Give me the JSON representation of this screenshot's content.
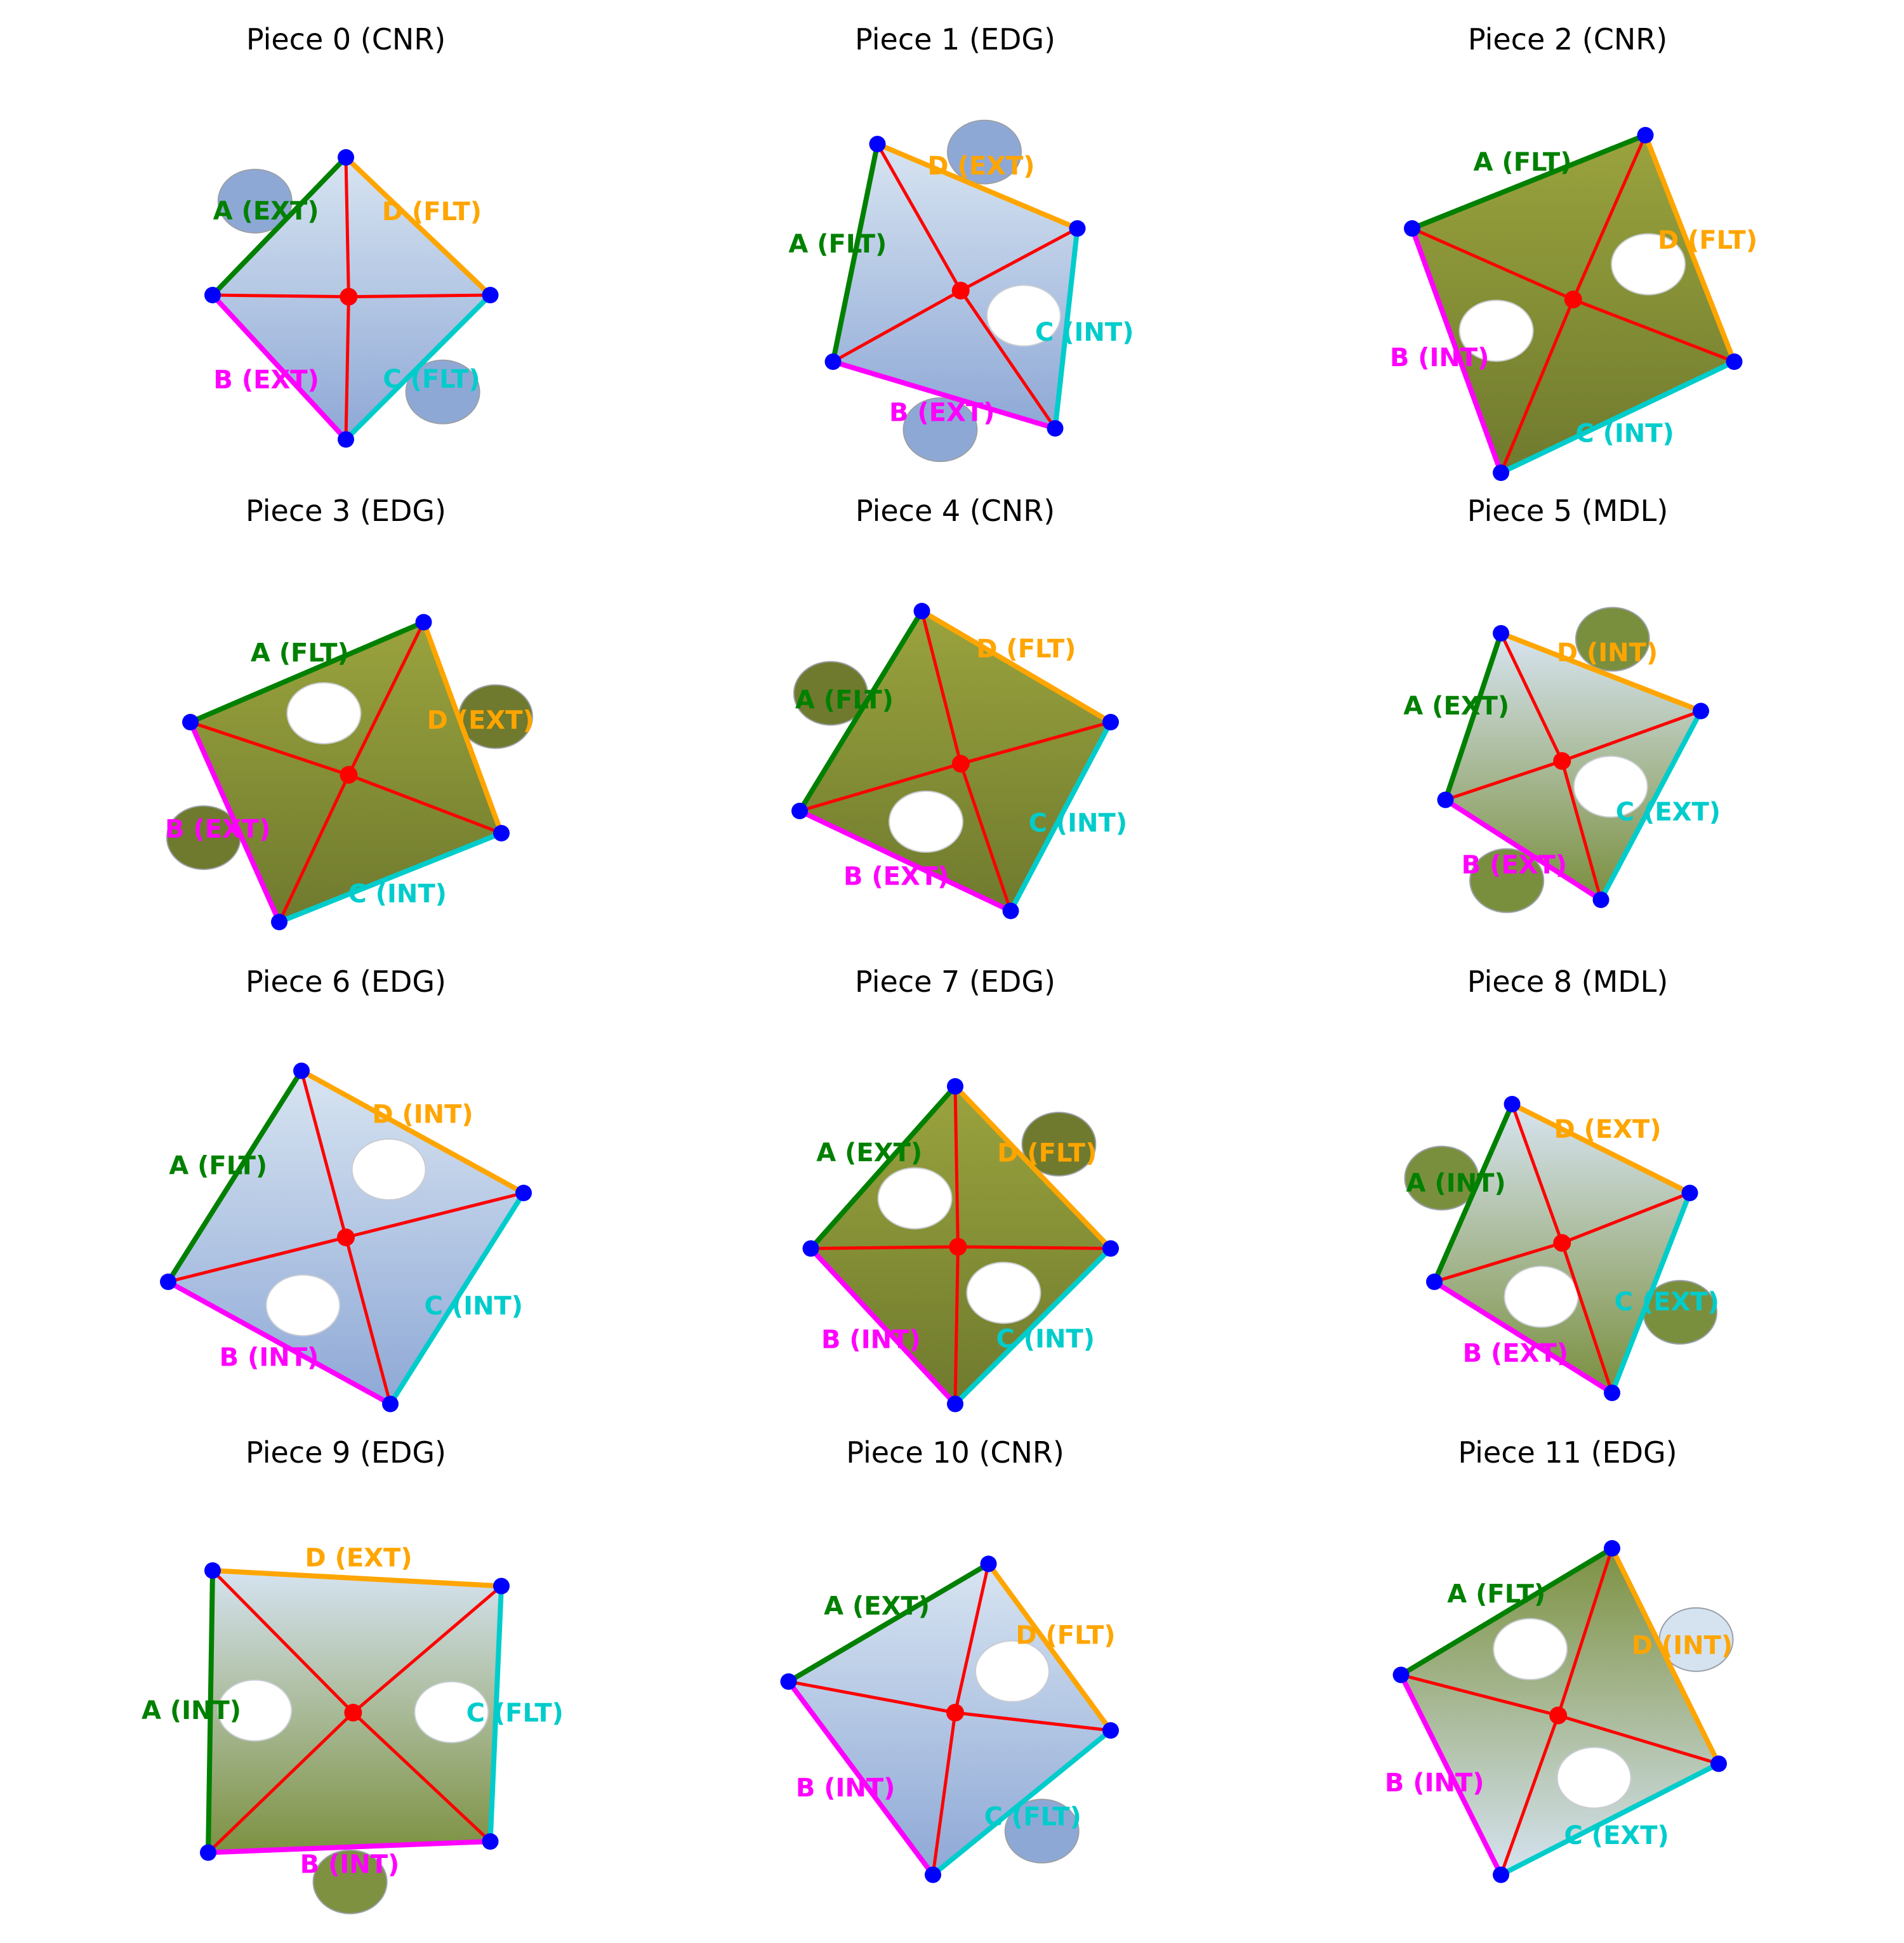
{
  "figure": {
    "pieces": [
      {
        "title": "Piece 0 (CNR)",
        "image": "sky",
        "tabs": [
          "ext",
          "ext"
        ],
        "holes": [],
        "corners": [
          [
            0,
            -62
          ],
          [
            -60,
            0
          ],
          [
            0,
            65
          ],
          [
            65,
            0
          ]
        ],
        "edges": [
          {
            "label": "A (EXT)",
            "color": "#008000"
          },
          {
            "label": "B (EXT)",
            "color": "#ff00ff"
          },
          {
            "label": "C (FLT)",
            "color": "#00cccc"
          },
          {
            "label": "D (FLT)",
            "color": "#ffa500"
          }
        ]
      },
      {
        "title": "Piece 1 (EDG)",
        "image": "sky",
        "tabs": [
          "ext",
          "ext"
        ],
        "holes": [
          "int"
        ],
        "corners": [
          [
            -35,
            -68
          ],
          [
            -55,
            30
          ],
          [
            45,
            60
          ],
          [
            55,
            -30
          ]
        ],
        "edges": [
          {
            "label": "A (FLT)",
            "color": "#008000"
          },
          {
            "label": "B (EXT)",
            "color": "#ff00ff"
          },
          {
            "label": "C (INT)",
            "color": "#00cccc"
          },
          {
            "label": "D (EXT)",
            "color": "#ffa500"
          }
        ]
      },
      {
        "title": "Piece 2 (CNR)",
        "image": "grass",
        "tabs": [],
        "holes": [
          "int",
          "int"
        ],
        "corners": [
          [
            35,
            -72
          ],
          [
            -70,
            -30
          ],
          [
            -30,
            80
          ],
          [
            75,
            30
          ]
        ],
        "edges": [
          {
            "label": "A (FLT)",
            "color": "#008000"
          },
          {
            "label": "B (INT)",
            "color": "#ff00ff"
          },
          {
            "label": "C (INT)",
            "color": "#00cccc"
          },
          {
            "label": "D (FLT)",
            "color": "#ffa500"
          }
        ]
      },
      {
        "title": "Piece 3 (EDG)",
        "image": "grass",
        "tabs": [
          "ext",
          "ext"
        ],
        "holes": [
          "int"
        ],
        "corners": [
          [
            35,
            -65
          ],
          [
            -70,
            -20
          ],
          [
            -30,
            70
          ],
          [
            70,
            30
          ]
        ],
        "edges": [
          {
            "label": "A (FLT)",
            "color": "#008000"
          },
          {
            "label": "B (EXT)",
            "color": "#ff00ff"
          },
          {
            "label": "C (INT)",
            "color": "#00cccc"
          },
          {
            "label": "D (EXT)",
            "color": "#ffa500"
          }
        ]
      },
      {
        "title": "Piece 4 (CNR)",
        "image": "grass",
        "tabs": [
          "ext"
        ],
        "holes": [
          "int"
        ],
        "corners": [
          [
            -15,
            -70
          ],
          [
            -70,
            20
          ],
          [
            25,
            65
          ],
          [
            70,
            -20
          ]
        ],
        "edges": [
          {
            "label": "A (FLT)",
            "color": "#008000"
          },
          {
            "label": "B (EXT)",
            "color": "#ff00ff"
          },
          {
            "label": "C (INT)",
            "color": "#00cccc"
          },
          {
            "label": "D (FLT)",
            "color": "#ffa500"
          }
        ]
      },
      {
        "title": "Piece 5 (MDL)",
        "image": "mixed",
        "tabs": [
          "ext",
          "ext",
          "ext"
        ],
        "holes": [
          "int"
        ],
        "corners": [
          [
            -30,
            -60
          ],
          [
            -55,
            15
          ],
          [
            15,
            60
          ],
          [
            60,
            -25
          ]
        ],
        "edges": [
          {
            "label": "A (EXT)",
            "color": "#008000"
          },
          {
            "label": "B (EXT)",
            "color": "#ff00ff"
          },
          {
            "label": "C (EXT)",
            "color": "#00cccc"
          },
          {
            "label": "D (INT)",
            "color": "#ffa500"
          }
        ]
      },
      {
        "title": "Piece 6 (EDG)",
        "image": "sky",
        "tabs": [],
        "holes": [
          "int",
          "int",
          "int"
        ],
        "corners": [
          [
            -20,
            -75
          ],
          [
            -80,
            20
          ],
          [
            20,
            75
          ],
          [
            80,
            -20
          ]
        ],
        "edges": [
          {
            "label": "A (FLT)",
            "color": "#008000"
          },
          {
            "label": "B (INT)",
            "color": "#ff00ff"
          },
          {
            "label": "C (INT)",
            "color": "#00cccc"
          },
          {
            "label": "D (INT)",
            "color": "#ffa500"
          }
        ]
      },
      {
        "title": "Piece 7 (EDG)",
        "image": "grass",
        "tabs": [
          "ext"
        ],
        "holes": [
          "int",
          "int"
        ],
        "corners": [
          [
            0,
            -68
          ],
          [
            -65,
            5
          ],
          [
            0,
            75
          ],
          [
            70,
            5
          ]
        ],
        "edges": [
          {
            "label": "A (EXT)",
            "color": "#008000"
          },
          {
            "label": "B (INT)",
            "color": "#ff00ff"
          },
          {
            "label": "C (INT)",
            "color": "#00cccc"
          },
          {
            "label": "D (FLT)",
            "color": "#ffa500"
          }
        ]
      },
      {
        "title": "Piece 8 (MDL)",
        "image": "mixed",
        "tabs": [
          "ext",
          "ext",
          "ext"
        ],
        "holes": [
          "int"
        ],
        "corners": [
          [
            -25,
            -60
          ],
          [
            -60,
            20
          ],
          [
            20,
            70
          ],
          [
            55,
            -20
          ]
        ],
        "edges": [
          {
            "label": "A (INT)",
            "color": "#008000"
          },
          {
            "label": "B (EXT)",
            "color": "#ff00ff"
          },
          {
            "label": "C (EXT)",
            "color": "#00cccc"
          },
          {
            "label": "D (EXT)",
            "color": "#ffa500"
          }
        ]
      },
      {
        "title": "Piece 9 (EDG)",
        "image": "skyfield",
        "tabs": [
          "ext"
        ],
        "holes": [
          "int",
          "int"
        ],
        "corners": [
          [
            -60,
            -62
          ],
          [
            -62,
            65
          ],
          [
            65,
            60
          ],
          [
            70,
            -55
          ]
        ],
        "edges": [
          {
            "label": "A (INT)",
            "color": "#008000"
          },
          {
            "label": "B (INT)",
            "color": "#ff00ff"
          },
          {
            "label": "C (FLT)",
            "color": "#00cccc"
          },
          {
            "label": "D (EXT)",
            "color": "#ffa500"
          }
        ]
      },
      {
        "title": "Piece 10 (CNR)",
        "image": "sky",
        "tabs": [
          "ext"
        ],
        "holes": [
          "int"
        ],
        "corners": [
          [
            15,
            -65
          ],
          [
            -75,
            -12
          ],
          [
            -10,
            75
          ],
          [
            70,
            10
          ]
        ],
        "edges": [
          {
            "label": "A (EXT)",
            "color": "#008000"
          },
          {
            "label": "B (INT)",
            "color": "#ff00ff"
          },
          {
            "label": "C (FLT)",
            "color": "#00cccc"
          },
          {
            "label": "D (FLT)",
            "color": "#ffa500"
          }
        ]
      },
      {
        "title": "Piece 11 (EDG)",
        "image": "fieldsky",
        "tabs": [
          "ext"
        ],
        "holes": [
          "int",
          "int"
        ],
        "corners": [
          [
            20,
            -72
          ],
          [
            -75,
            -15
          ],
          [
            -30,
            75
          ],
          [
            68,
            25
          ]
        ],
        "edges": [
          {
            "label": "A (FLT)",
            "color": "#008000"
          },
          {
            "label": "B (INT)",
            "color": "#ff00ff"
          },
          {
            "label": "C (EXT)",
            "color": "#00cccc"
          },
          {
            "label": "D (INT)",
            "color": "#ffa500"
          }
        ]
      }
    ]
  }
}
